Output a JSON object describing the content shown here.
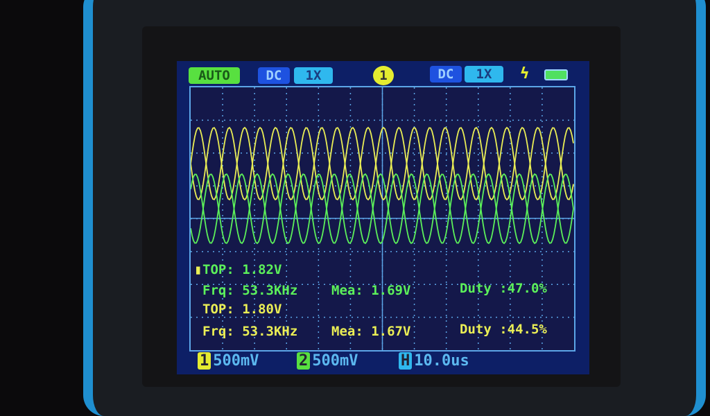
{
  "top_bar": {
    "mode": "AUTO",
    "ch1_coupling": "DC",
    "ch1_probe": "1X",
    "trigger_channel": "1",
    "ch2_coupling": "DC",
    "ch2_probe": "1X",
    "trigger_edge_icon": "lightning-icon",
    "battery_icon": "battery-icon"
  },
  "measurements": {
    "ch1": {
      "top": "TOP: 1.82V",
      "frq": "Frq: 53.3KHz",
      "mea": "Mea: 1.69V",
      "duty": "Duty :47.0%"
    },
    "ch2": {
      "top": "TOP: 1.80V",
      "frq": "Frq: 53.3KHz",
      "mea": "Mea: 1.67V",
      "duty": "Duty :44.5%"
    }
  },
  "bottom_bar": {
    "ch1_label": "1",
    "ch1_scale": "500mV",
    "ch2_label": "2",
    "ch2_scale": "500mV",
    "time_label": "H",
    "time_scale": "10.0us"
  },
  "colors": {
    "ch1": "#eaee55",
    "ch2": "#5cf05a",
    "grid": "#5ca6e8",
    "screen": "#0d1f66"
  }
}
